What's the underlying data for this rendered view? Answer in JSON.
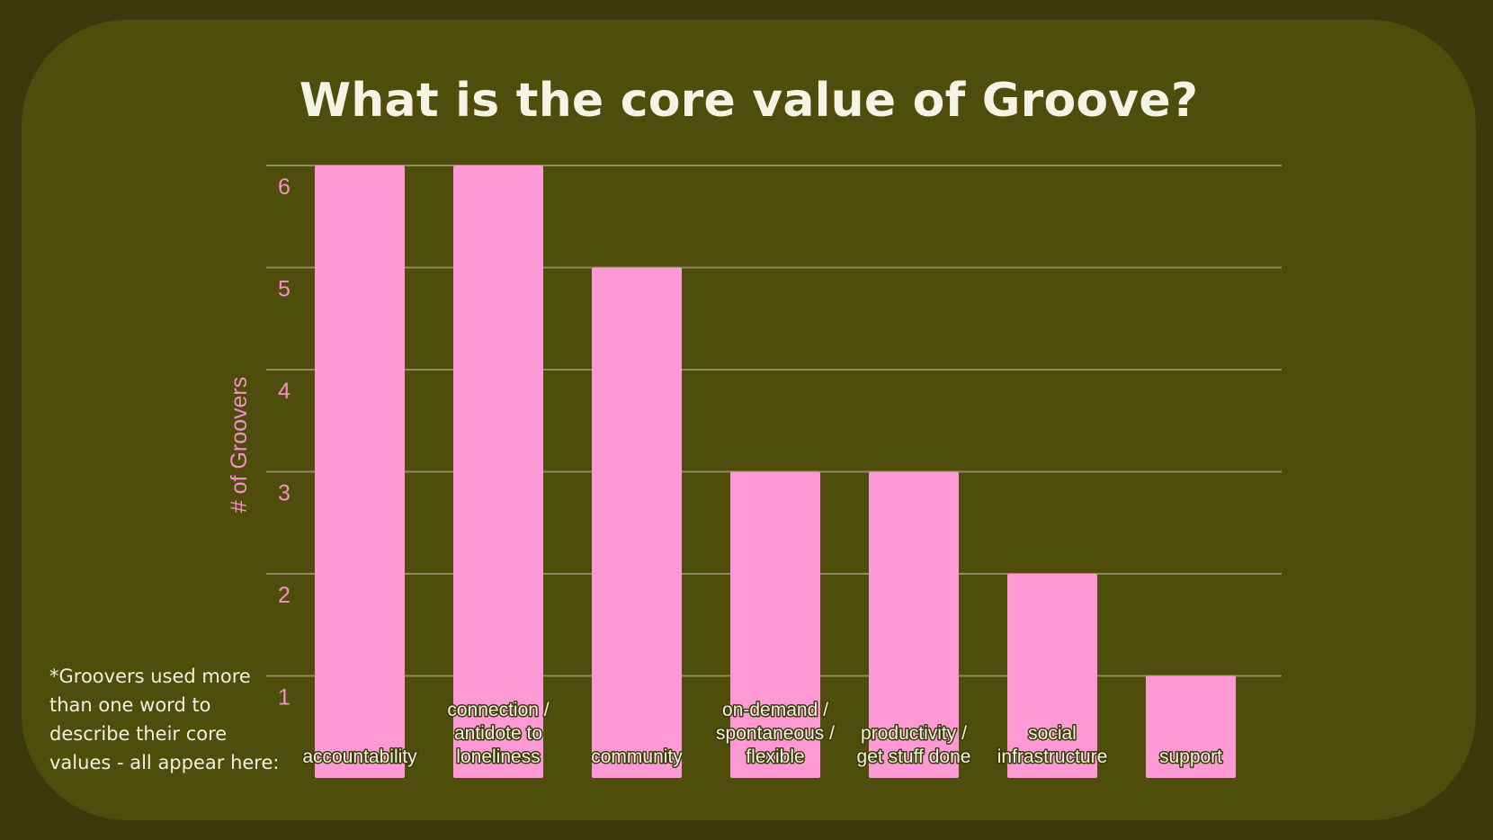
{
  "title": "What is the core value of Groove?",
  "footnote": "*Groovers used more\nthan one word to\ndescribe their core\nvalues - all appear here:",
  "colors": {
    "background": "#3c3a0d",
    "card": "#4f4d0b",
    "bar": "#ff99d6",
    "axis_text": "#f58fc8",
    "gridline": "#8d8a5e",
    "title": "#f4f3e4"
  },
  "chart_data": {
    "type": "bar",
    "title": "What is the core value of Groove?",
    "xlabel": "",
    "ylabel": "# of Groovers",
    "categories": [
      [
        "accountability"
      ],
      [
        "connection /",
        "antidote to",
        "loneliness"
      ],
      [
        "community"
      ],
      [
        "on-demand /",
        "spontaneous /",
        "flexible"
      ],
      [
        "productivity /",
        "get stuff done"
      ],
      [
        "social",
        "infrastructure"
      ],
      [
        "support"
      ]
    ],
    "values": [
      6,
      6,
      5,
      3,
      3,
      2,
      1
    ],
    "ylim": [
      0,
      6
    ],
    "yticks": [
      1,
      2,
      3,
      4,
      5,
      6
    ],
    "grid": true,
    "legend": "none"
  }
}
